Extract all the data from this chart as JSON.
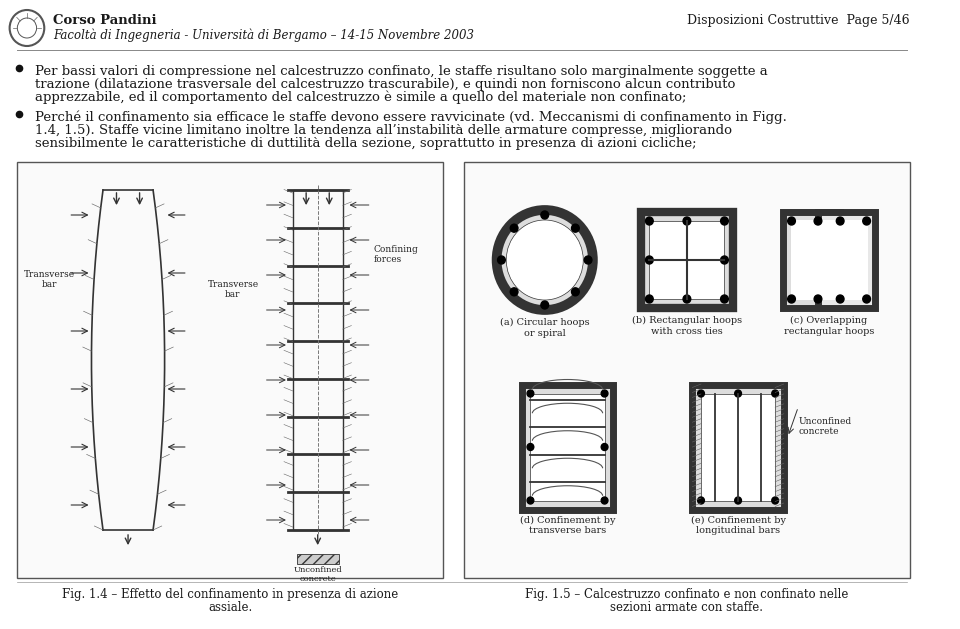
{
  "page_title_left_bold": "Corso Pandini",
  "page_title_left_sub": "Facoltà di Ingegneria - Università di Bergamo – 14-15 Novembre 2003",
  "page_title_right": "Disposizioni Costruttive  Page 5/46",
  "bullet1_lines": [
    "Per bassi valori di compressione nel calcestruzzo confinato, le staffe risultano solo marginalmente soggette a",
    "trazione (dilatazione trasversale del calcestruzzo trascurabile), e quindi non forniscono alcun contributo",
    "apprezzabile, ed il comportamento del calcestruzzo è simile a quello del materiale non confinato;"
  ],
  "bullet2_lines": [
    "Perché il confinamento sia efficace le staffe devono essere ravvicinate (vd. Meccanismi di confinamento in Figg.",
    "1.4, 1.5). Staffe vicine limitano inoltre la tendenza all’instabilità delle armature compresse, migliorando",
    "sensibilmente le caratteristiche di duttilità della sezione, soprattutto in presenza di azioni cicliche;"
  ],
  "fig14_caption_line1": "Fig. 1.4 – Effetto del confinamento in presenza di azione",
  "fig14_caption_line2": "assiale.",
  "fig15_caption_line1": "Fig. 1.5 – Calcestruzzo confinato e non confinato nelle",
  "fig15_caption_line2": "sezioni armate con staffe.",
  "label_transverse_bar": "Transverse\nbar",
  "label_confining_forces": "Confining\nforces",
  "label_unconfined_concrete": "Unconfined\nconcrete",
  "label_a": "(a) Circular hoops\nor spiral",
  "label_b": "(b) Rectangular hoops\nwith cross ties",
  "label_c": "(c) Overlapping\nrectangular hoops",
  "label_d": "(d) Confinement by\ntransverse bars",
  "label_e": "(e) Confinement by\nlongitudinal bars",
  "bg_color": "#ffffff",
  "text_color": "#1a1a1a",
  "dark": "#222222",
  "mid_gray": "#555555",
  "light_gray": "#888888"
}
